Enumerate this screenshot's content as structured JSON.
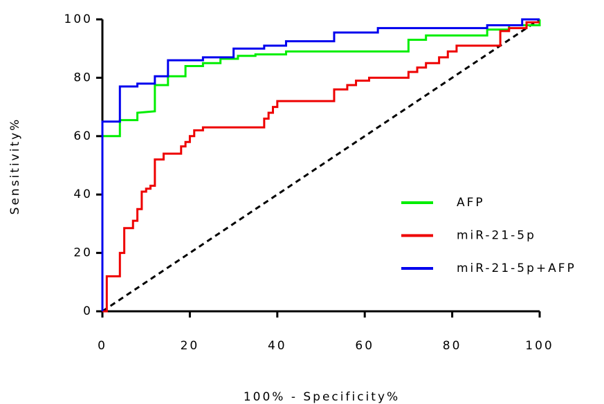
{
  "chart_data": {
    "type": "step",
    "xlabel": "100% - Specificity%",
    "ylabel": "Sensitivity%",
    "xlim": [
      0,
      100
    ],
    "ylim": [
      0,
      100
    ],
    "xticks": [
      0,
      20,
      40,
      60,
      80,
      100
    ],
    "yticks": [
      0,
      20,
      40,
      60,
      80,
      100
    ],
    "series": [
      {
        "name": "AFP",
        "color": "#00ee00",
        "x": [
          0,
          0,
          4,
          4,
          8,
          8,
          12,
          12,
          15,
          15,
          19,
          19,
          23,
          23,
          27,
          27,
          31,
          31,
          35,
          35,
          42,
          42,
          70,
          70,
          74,
          74,
          88,
          88,
          93,
          93,
          100,
          100
        ],
        "values": [
          0,
          60,
          60,
          65.5,
          65.5,
          68,
          68.5,
          77.5,
          77.5,
          80.5,
          80.5,
          84,
          84,
          85,
          85,
          86.5,
          86.5,
          87.5,
          87.5,
          88,
          88,
          89,
          89,
          93,
          93,
          94.5,
          94.5,
          96.5,
          96.5,
          98,
          98,
          100
        ]
      },
      {
        "name": "miR-21-5p",
        "color": "#ee0000",
        "x": [
          0,
          1,
          1,
          4,
          4,
          5,
          5,
          7,
          7,
          8,
          8,
          9,
          9,
          10,
          10,
          11,
          11,
          12,
          12,
          14,
          14,
          18,
          18,
          19,
          19,
          20,
          20,
          21,
          21,
          23,
          23,
          37,
          37,
          38,
          38,
          39,
          39,
          40,
          40,
          53,
          53,
          56,
          56,
          58,
          58,
          61,
          61,
          70,
          70,
          72,
          72,
          74,
          74,
          77,
          77,
          79,
          79,
          81,
          81,
          91,
          91,
          93,
          93,
          97,
          97,
          100
        ],
        "values": [
          0,
          0,
          12,
          12,
          20,
          20,
          28.5,
          28.5,
          31,
          31,
          35,
          35,
          41,
          41,
          42,
          42,
          43,
          43,
          52,
          52,
          54,
          54,
          56.5,
          56.5,
          58,
          58,
          60,
          60,
          62,
          62,
          63,
          63,
          66,
          66,
          68,
          68,
          70,
          70,
          72,
          72,
          76,
          76,
          77.5,
          77.5,
          79,
          79,
          80,
          80,
          82,
          82,
          83.5,
          83.5,
          85,
          85,
          87,
          87,
          89,
          89,
          91,
          91,
          96,
          96,
          97,
          97,
          99,
          99
        ]
      },
      {
        "name": "miR-21-5p+AFP",
        "color": "#0000ee",
        "x": [
          0,
          0,
          4,
          4,
          8,
          8,
          12,
          12,
          15,
          15,
          23,
          23,
          30,
          30,
          37,
          37,
          42,
          42,
          53,
          53,
          63,
          63,
          88,
          88,
          96,
          96,
          100
        ],
        "values": [
          0,
          65,
          65,
          77,
          77,
          78,
          78,
          80.5,
          80.5,
          86,
          86,
          87,
          87,
          90,
          90,
          91,
          91,
          92.5,
          92.5,
          95.5,
          95.5,
          97,
          97,
          98,
          98,
          100,
          100
        ]
      }
    ]
  }
}
